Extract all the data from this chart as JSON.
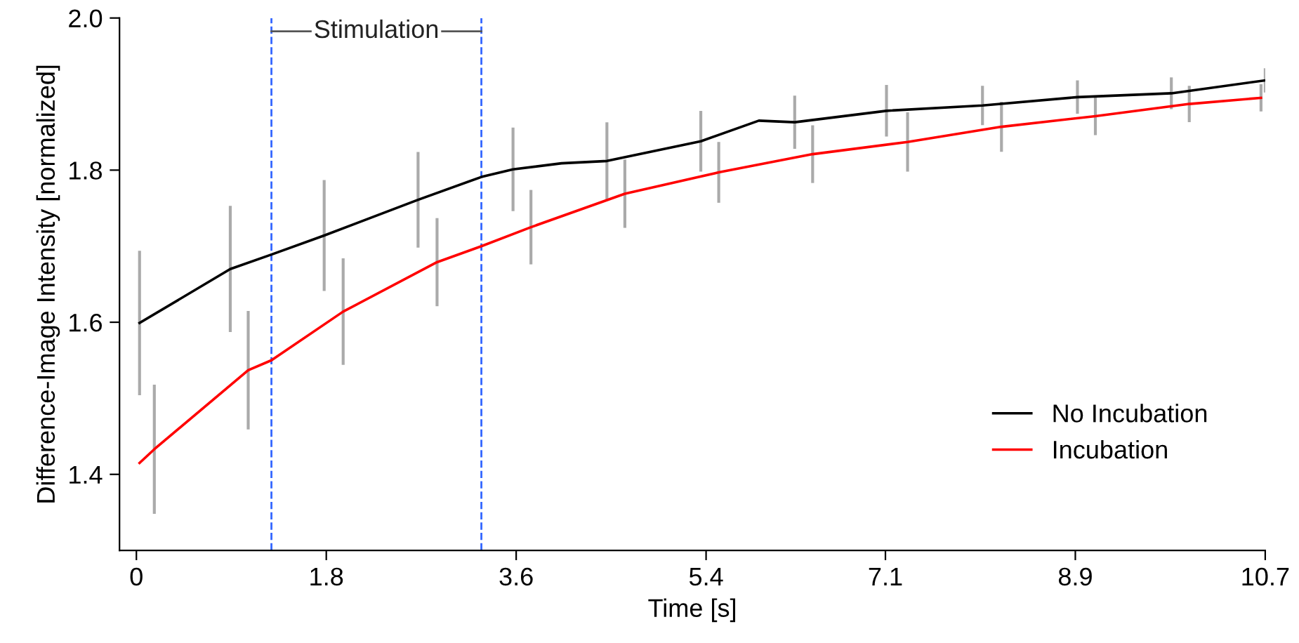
{
  "chart_data": {
    "type": "line",
    "xlabel": "Time [s]",
    "ylabel": "Difference-Image Intensity [normalized]",
    "xlim": [
      -0.16,
      10.7
    ],
    "xticks": [
      0,
      1.8,
      3.6,
      5.4,
      7.1,
      8.9,
      10.7
    ],
    "ylim": [
      1.3,
      2.0
    ],
    "yticks": [
      1.4,
      1.6,
      1.8,
      {
        "value": 2.0,
        "label": "2.0"
      }
    ],
    "grid": false,
    "legend": "bottom right",
    "marker": "none",
    "line_style": "solid",
    "ref_lines": [
      {
        "axis": "x",
        "value": 1.28,
        "color": "#3366ff",
        "line_style": "dashed"
      },
      {
        "axis": "x",
        "value": 3.27,
        "color": "#3366ff",
        "line_style": "dashed"
      }
    ],
    "annotations": [
      "Stimulation"
    ],
    "series": [
      {
        "name": "No Incubation",
        "color": "#000000",
        "x": [
          0.03,
          0.89,
          1.28,
          1.78,
          2.67,
          3.27,
          3.57,
          4.03,
          4.46,
          5.35,
          5.9,
          6.24,
          7.11,
          8.02,
          8.92,
          9.81,
          10.7
        ],
        "values": [
          1.599,
          1.67,
          1.689,
          1.714,
          1.761,
          1.791,
          1.801,
          1.809,
          1.812,
          1.838,
          1.865,
          1.863,
          1.878,
          1.885,
          1.896,
          1.901,
          1.918
        ],
        "errors": [
          0.093,
          0.081,
          null,
          0.071,
          0.061,
          null,
          0.053,
          null,
          0.049,
          0.038,
          null,
          0.033,
          0.032,
          0.024,
          0.02,
          0.019,
          0.014
        ]
      },
      {
        "name": "Incubation",
        "color": "#ff0000",
        "x": [
          0.03,
          0.17,
          1.06,
          1.28,
          1.96,
          2.85,
          3.27,
          3.74,
          4.63,
          5.52,
          6.41,
          7.31,
          8.2,
          9.09,
          9.98,
          10.66
        ],
        "values": [
          1.415,
          1.433,
          1.537,
          1.55,
          1.614,
          1.679,
          1.7,
          1.725,
          1.769,
          1.797,
          1.821,
          1.837,
          1.857,
          1.871,
          1.887,
          1.895
        ],
        "errors": [
          null,
          0.083,
          0.076,
          null,
          0.068,
          0.056,
          null,
          0.047,
          0.043,
          0.038,
          0.036,
          0.037,
          0.031,
          0.023,
          0.022,
          0.016
        ]
      }
    ]
  }
}
